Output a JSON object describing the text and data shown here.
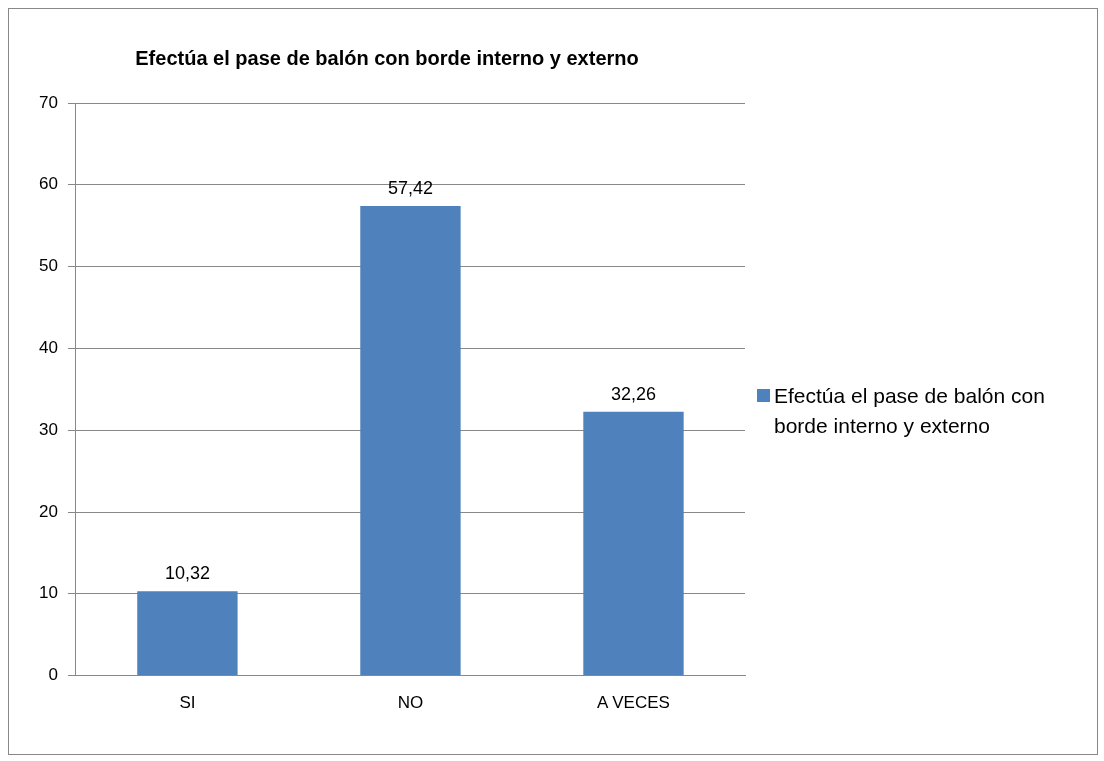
{
  "chart_data": {
    "type": "bar",
    "title": "Efectúa el pase de balón con borde interno y externo",
    "categories": [
      "SI",
      "NO",
      "A VECES"
    ],
    "series": [
      {
        "name": "Efectúa el pase de balón con borde interno y externo",
        "color": "#4f81bd",
        "values": [
          10.32,
          57.42,
          32.26
        ],
        "value_labels": [
          "10,32",
          "57,42",
          "32,26"
        ]
      }
    ],
    "ylim": [
      0,
      70
    ],
    "yticks": [
      0,
      10,
      20,
      30,
      40,
      50,
      60,
      70
    ],
    "grid": "y",
    "legend": "right"
  }
}
